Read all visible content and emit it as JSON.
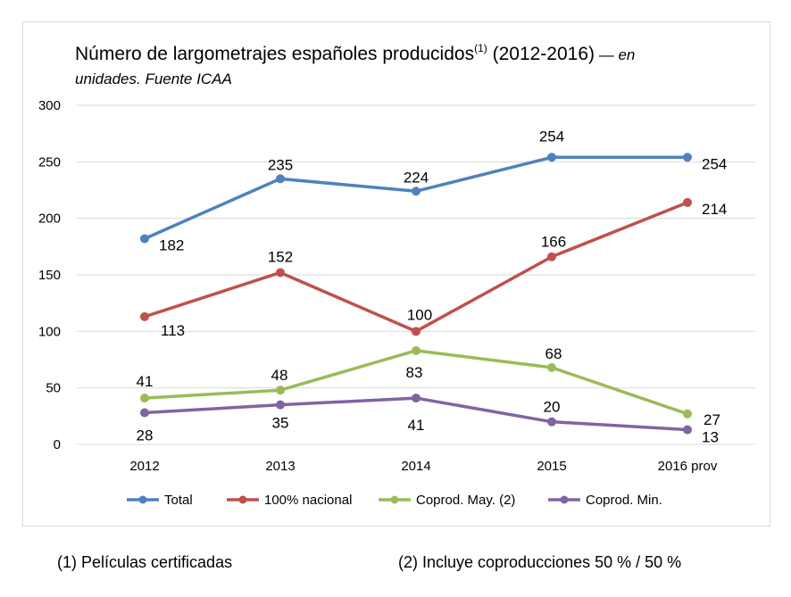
{
  "title": {
    "main": "Número de largometrajes españoles producidos",
    "sup": "(1)",
    "range": " (2012-2016)",
    "dash": " — ",
    "note_a": "en",
    "note_b": "unidades. Fuente ICAA"
  },
  "footnotes": {
    "left": "(1)  Películas certificadas",
    "right": "(2) Incluye coproducciones  50 % / 50 %"
  },
  "chart_data": {
    "type": "line",
    "categories": [
      "2012",
      "2013",
      "2014",
      "2015",
      "2016 prov"
    ],
    "ylim": [
      0,
      300
    ],
    "yticks": [
      0,
      50,
      100,
      150,
      200,
      250,
      300
    ],
    "grid": true,
    "legend_position": "bottom",
    "series": [
      {
        "name": "Total",
        "color": "#4f81bd",
        "values": [
          182,
          235,
          224,
          254,
          254
        ]
      },
      {
        "name": "100% nacional",
        "color": "#c0504d",
        "values": [
          113,
          152,
          100,
          166,
          214
        ]
      },
      {
        "name": "Coprod. May. (2)",
        "color": "#9bbb59",
        "values": [
          41,
          48,
          83,
          68,
          27
        ]
      },
      {
        "name": "Coprod. Min.",
        "color": "#8064a2",
        "values": [
          28,
          35,
          41,
          20,
          13
        ]
      }
    ]
  }
}
